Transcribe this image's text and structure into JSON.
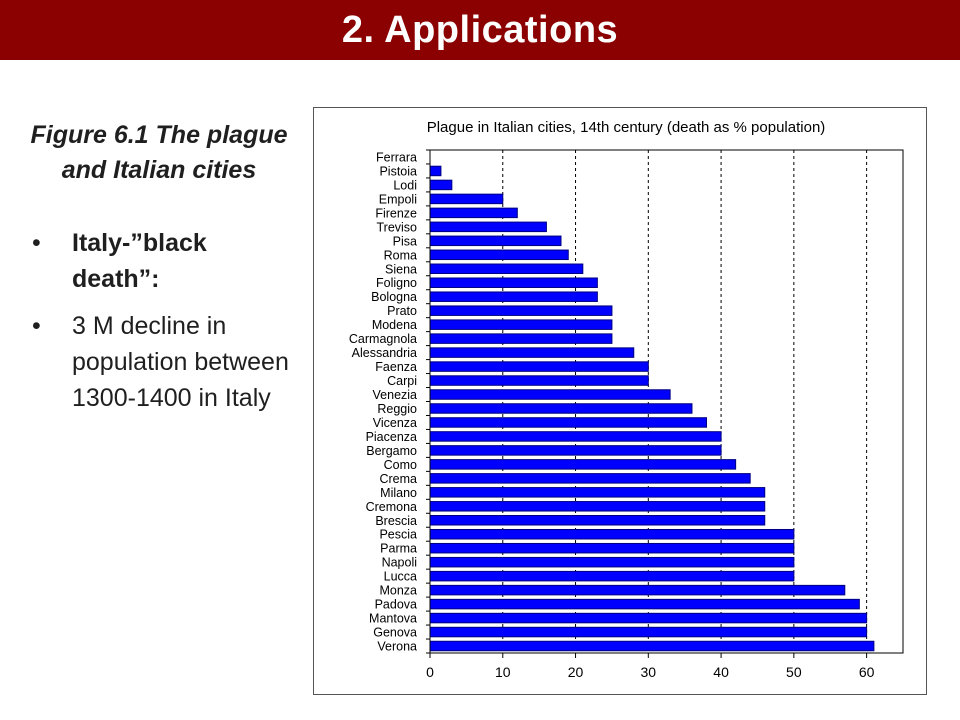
{
  "header": {
    "title": "2. Applications"
  },
  "sidebar": {
    "figure_caption": "Figure 6.1  The plague and Italian cities",
    "bullets": [
      {
        "text": "Italy-”black death”:",
        "bold": true
      },
      {
        "text": "3 M decline in population between 1300-1400 in Italy",
        "bold": false
      }
    ]
  },
  "colors": {
    "title_bar": "#8b0000",
    "bar_fill": "#0000ff",
    "bar_stroke": "#000080"
  },
  "chart_data": {
    "type": "bar",
    "orientation": "horizontal",
    "title": "Plague in Italian cities, 14th century (death as % population)",
    "xlim": [
      0,
      65
    ],
    "x_ticks": [
      0,
      10,
      20,
      30,
      40,
      50,
      60
    ],
    "grid": "vertical dashed",
    "legend": "none",
    "categories": [
      "Ferrara",
      "Pistoia",
      "Lodi",
      "Empoli",
      "Firenze",
      "Treviso",
      "Pisa",
      "Roma",
      "Siena",
      "Foligno",
      "Bologna",
      "Prato",
      "Modena",
      "Carmagnola",
      "Alessandria",
      "Faenza",
      "Carpi",
      "Venezia",
      "Reggio",
      "Vicenza",
      "Piacenza",
      "Bergamo",
      "Como",
      "Crema",
      "Milano",
      "Cremona",
      "Brescia",
      "Pescia",
      "Parma",
      "Napoli",
      "Lucca",
      "Monza",
      "Padova",
      "Mantova",
      "Genova",
      "Verona"
    ],
    "values": [
      0,
      1.5,
      3,
      10,
      12,
      16,
      18,
      19,
      21,
      23,
      23,
      25,
      25,
      25,
      28,
      30,
      30,
      33,
      36,
      38,
      40,
      40,
      42,
      44,
      46,
      46,
      46,
      50,
      50,
      50,
      50,
      57,
      59,
      60,
      60,
      61
    ]
  }
}
